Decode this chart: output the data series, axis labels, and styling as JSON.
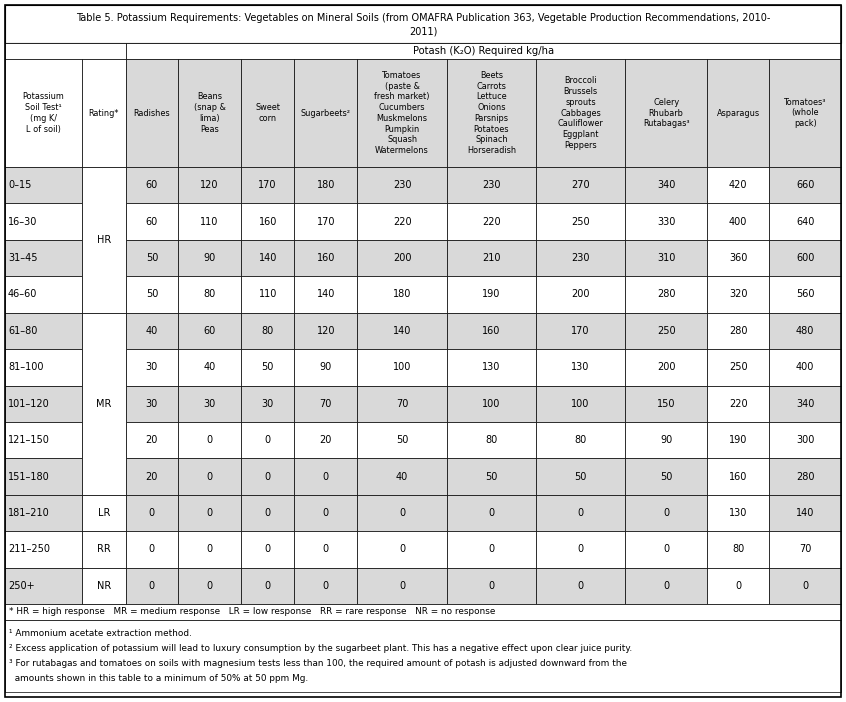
{
  "title_line1": "Table 5. Potassium Requirements: Vegetables on Mineral Soils (from OMAFRA Publication 363, Vegetable Production Recommendations, 2010-",
  "title_line2": "2011)",
  "potash_header": "Potash (K₂O) Required kg/ha",
  "col_headers": [
    "Potassium\nSoil Test¹\n(mg K/\nL of soil)",
    "Rating*",
    "Radishes",
    "Beans\n(snap &\nlima)\nPeas",
    "Sweet\ncorn",
    "Sugarbeets²",
    "Tomatoes\n(paste &\nfresh market)\nCucumbers\nMuskmelons\nPumpkin\nSquash\nWatermelons",
    "Beets\nCarrots\nLettuce\nOnions\nParsnips\nPotatoes\nSpinach\nHorseradish",
    "Broccoli\nBrussels\nsprouts\nCabbages\nCauliflower\nEggplant\nPeppers",
    "Celery\nRhubarb\nRutabagas³",
    "Asparagus",
    "Tomatoes³\n(whole\npack)"
  ],
  "rows": [
    [
      "0–15",
      "",
      "60",
      "120",
      "170",
      "180",
      "230",
      "230",
      "270",
      "340",
      "420",
      "660"
    ],
    [
      "16–30",
      "HR",
      "60",
      "110",
      "160",
      "170",
      "220",
      "220",
      "250",
      "330",
      "400",
      "640"
    ],
    [
      "31–45",
      "",
      "50",
      "90",
      "140",
      "160",
      "200",
      "210",
      "230",
      "310",
      "360",
      "600"
    ],
    [
      "46–60",
      "",
      "50",
      "80",
      "110",
      "140",
      "180",
      "190",
      "200",
      "280",
      "320",
      "560"
    ],
    [
      "61–80",
      "",
      "40",
      "60",
      "80",
      "120",
      "140",
      "160",
      "170",
      "250",
      "280",
      "480"
    ],
    [
      "81–100",
      "",
      "30",
      "40",
      "50",
      "90",
      "100",
      "130",
      "130",
      "200",
      "250",
      "400"
    ],
    [
      "101–120",
      "MR",
      "30",
      "30",
      "30",
      "70",
      "70",
      "100",
      "100",
      "150",
      "220",
      "340"
    ],
    [
      "121–150",
      "",
      "20",
      "0",
      "0",
      "20",
      "50",
      "80",
      "80",
      "90",
      "190",
      "300"
    ],
    [
      "151–180",
      "",
      "20",
      "0",
      "0",
      "0",
      "40",
      "50",
      "50",
      "50",
      "160",
      "280"
    ],
    [
      "181–210",
      "LR",
      "0",
      "0",
      "0",
      "0",
      "0",
      "0",
      "0",
      "0",
      "130",
      "140"
    ],
    [
      "211–250",
      "RR",
      "0",
      "0",
      "0",
      "0",
      "0",
      "0",
      "0",
      "0",
      "80",
      "70"
    ],
    [
      "250+",
      "NR",
      "0",
      "0",
      "0",
      "0",
      "0",
      "0",
      "0",
      "0",
      "0",
      "0"
    ]
  ],
  "rating_spans": [
    {
      "label": "HR",
      "start": 0,
      "end": 3
    },
    {
      "label": "MR",
      "start": 4,
      "end": 8
    },
    {
      "label": "LR",
      "start": 9,
      "end": 9
    },
    {
      "label": "RR",
      "start": 10,
      "end": 10
    },
    {
      "label": "NR",
      "start": 11,
      "end": 11
    }
  ],
  "gray": "#d9d9d9",
  "white": "#ffffff",
  "footnote_star": "* HR = high response   MR = medium response   LR = low response   RR = rare response   NR = no response",
  "footnotes": [
    "¹ Ammonium acetate extraction method.",
    "² Excess application of potassium will lead to luxury consumption by the sugarbeet plant. This has a negative effect upon clear juice purity.",
    "³ For rutabagas and tomatoes on soils with magnesium tests less than 100, the required amount of potash is adjusted downward from the",
    "  amounts shown in this table to a minimum of 50% at 50 ppm Mg."
  ],
  "col_props": [
    0.0825,
    0.0475,
    0.056,
    0.068,
    0.057,
    0.068,
    0.096,
    0.096,
    0.096,
    0.088,
    0.067,
    0.077
  ]
}
